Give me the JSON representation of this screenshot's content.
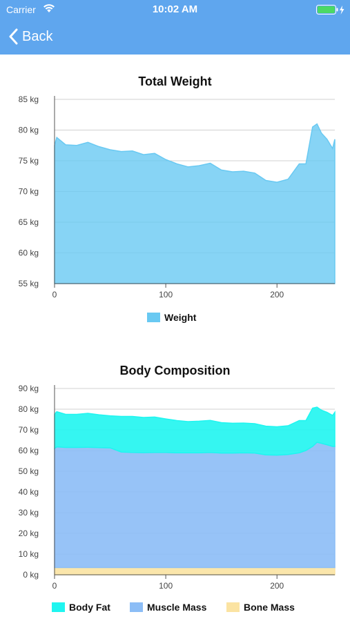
{
  "status_bar": {
    "carrier": "Carrier",
    "time": "10:02 AM",
    "battery_color": "#4cd964"
  },
  "nav": {
    "back_label": "Back",
    "bar_color": "#5fa6ee"
  },
  "chart_data": [
    {
      "type": "area",
      "title": "Total Weight",
      "xlabel": "",
      "ylabel": "",
      "x_ticks": [
        0,
        100,
        200
      ],
      "y_ticks": [
        "55 kg",
        "60 kg",
        "65 kg",
        "70 kg",
        "75 kg",
        "80 kg",
        "85 kg"
      ],
      "xlim": [
        0,
        252
      ],
      "ylim": [
        55,
        85
      ],
      "grid": "horizontal",
      "legend_position": "bottom",
      "series": [
        {
          "name": "Weight",
          "color": "#69c9f2",
          "x": [
            0,
            2,
            10,
            20,
            30,
            40,
            50,
            60,
            70,
            80,
            90,
            100,
            110,
            120,
            130,
            140,
            150,
            160,
            170,
            180,
            190,
            200,
            210,
            220,
            226,
            232,
            236,
            240,
            245,
            250,
            252
          ],
          "values": [
            77.5,
            78.8,
            77.6,
            77.5,
            78,
            77.3,
            76.8,
            76.5,
            76.6,
            76,
            76.2,
            75.2,
            74.5,
            74,
            74.2,
            74.6,
            73.5,
            73.2,
            73.3,
            73,
            71.8,
            71.5,
            72,
            74.5,
            74.5,
            80.5,
            81,
            79.5,
            78.5,
            77,
            78.5
          ]
        }
      ]
    },
    {
      "type": "area",
      "title": "Body Composition",
      "xlabel": "",
      "ylabel": "",
      "x_ticks": [
        0,
        100,
        200
      ],
      "y_ticks": [
        "0 kg",
        "10 kg",
        "20 kg",
        "30 kg",
        "40 kg",
        "50 kg",
        "60 kg",
        "70 kg",
        "80 kg",
        "90 kg"
      ],
      "xlim": [
        0,
        252
      ],
      "ylim": [
        0,
        90
      ],
      "grid": "horizontal",
      "legend_position": "bottom",
      "stacked": true,
      "x": [
        0,
        2,
        10,
        20,
        30,
        40,
        50,
        60,
        70,
        80,
        90,
        100,
        110,
        120,
        130,
        140,
        150,
        160,
        170,
        180,
        190,
        200,
        210,
        220,
        226,
        232,
        236,
        240,
        245,
        250,
        252
      ],
      "series": [
        {
          "name": "Bone Mass",
          "color": "#fbe3a2",
          "values": [
            3.5,
            3.5,
            3.5,
            3.5,
            3.5,
            3.5,
            3.5,
            3.5,
            3.5,
            3.5,
            3.5,
            3.5,
            3.5,
            3.5,
            3.5,
            3.5,
            3.5,
            3.5,
            3.5,
            3.5,
            3.5,
            3.5,
            3.5,
            3.5,
            3.5,
            3.5,
            3.5,
            3.5,
            3.5,
            3.5,
            3.5
          ]
        },
        {
          "name": "Muscle Mass",
          "color": "#8cbdf6",
          "values": [
            57.5,
            58.3,
            58,
            58,
            58.1,
            57.9,
            57.8,
            55.8,
            55.6,
            55.5,
            55.6,
            55.6,
            55.4,
            55.4,
            55.4,
            55.6,
            55.3,
            55.3,
            55.4,
            55.3,
            54.4,
            54.3,
            54.6,
            55.4,
            56.5,
            58.5,
            60.5,
            60,
            59.3,
            58.5,
            58.5
          ]
        },
        {
          "name": "Body Fat",
          "color": "#1ff5f0",
          "values": [
            16.5,
            17,
            16,
            16,
            16.4,
            15.9,
            15.5,
            17.2,
            17.4,
            17,
            17.1,
            16.2,
            15.6,
            15.1,
            15.3,
            15.5,
            14.7,
            14.4,
            14.4,
            14.2,
            13.9,
            13.7,
            13.9,
            15.6,
            14.5,
            18.5,
            17,
            16,
            15.7,
            15,
            16.5
          ]
        }
      ]
    }
  ]
}
